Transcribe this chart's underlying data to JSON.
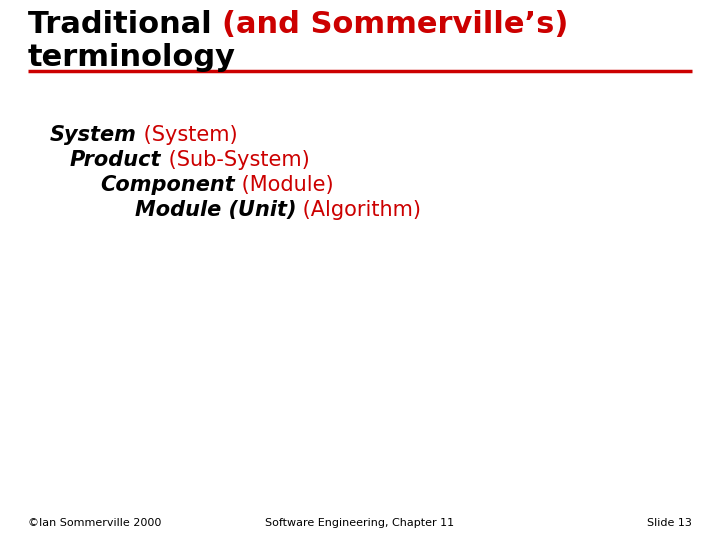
{
  "bg_color": "#ffffff",
  "red_color": "#cc0000",
  "black_color": "#000000",
  "title_fontsize": 22,
  "body_fontsize": 15,
  "footer_fontsize": 8,
  "footer_left": "©Ian Sommerville 2000",
  "footer_center": "Software Engineering, Chapter 11",
  "footer_right": "Slide 13"
}
